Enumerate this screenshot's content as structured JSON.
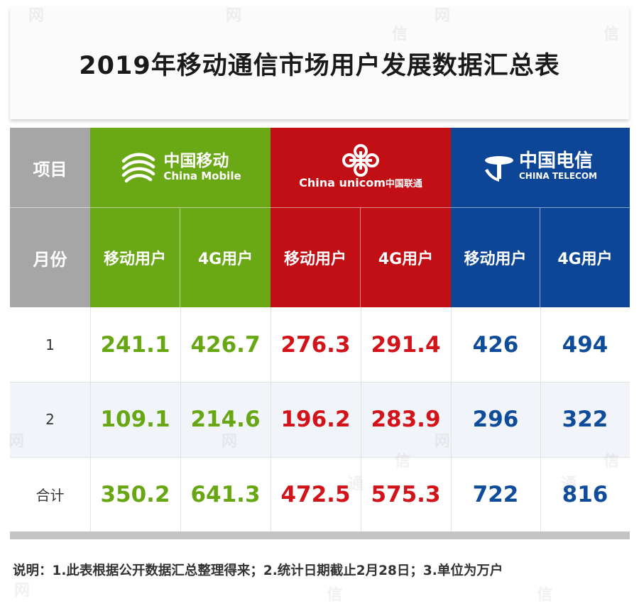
{
  "title": "2019年移动通信市场用户发展数据汇总表",
  "header": {
    "item_label": "项目",
    "month_label": "月份",
    "carriers": [
      {
        "name_cn": "中国移动",
        "name_en": "China Mobile",
        "color": "#6aa816"
      },
      {
        "name_cn": "中国联通",
        "name_en": "China unicom",
        "color": "#c10f15"
      },
      {
        "name_cn": "中国电信",
        "name_en": "CHINA TELECOM",
        "color": "#0d4697"
      }
    ],
    "sub_mobile": "移动用户",
    "sub_4g": "4G用户"
  },
  "rows": [
    {
      "label": "1",
      "values": [
        "241.1",
        "426.7",
        "276.3",
        "291.4",
        "426",
        "494"
      ]
    },
    {
      "label": "2",
      "values": [
        "109.1",
        "214.6",
        "196.2",
        "283.9",
        "296",
        "322"
      ]
    },
    {
      "label": "合计",
      "values": [
        "350.2",
        "641.3",
        "472.5",
        "575.3",
        "722",
        "816"
      ]
    }
  ],
  "note": "说明：1.此表根据公开数据汇总整理得来；2.统计日期截止2月28日；3.单位为万户",
  "watermark_chars": [
    "网",
    "通",
    "信"
  ]
}
